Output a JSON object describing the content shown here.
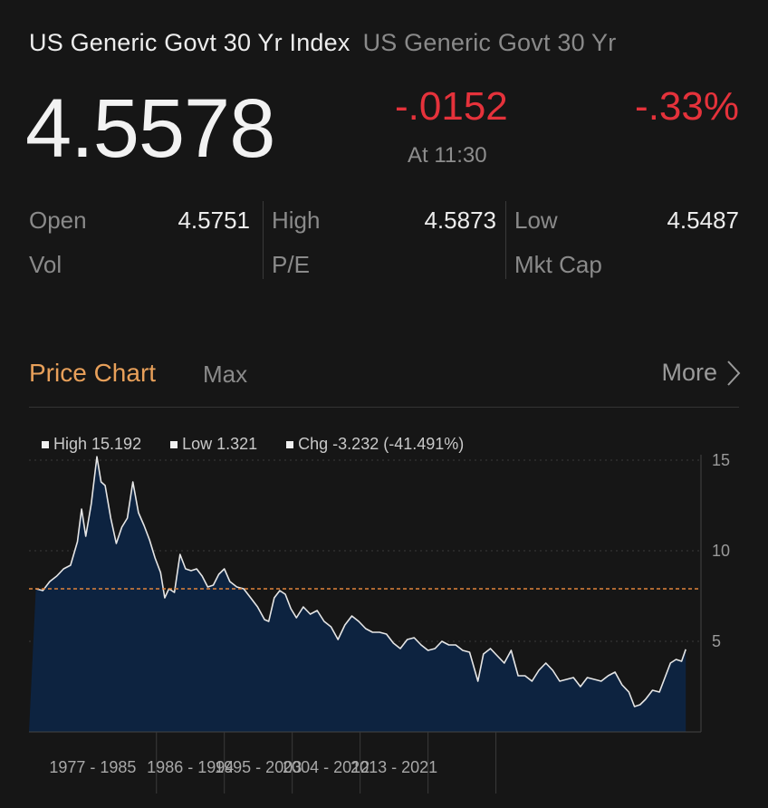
{
  "header": {
    "title": "US Generic Govt 30 Yr Index",
    "subtitle": "US Generic Govt 30 Yr",
    "price": "4.5578",
    "change": "-.0152",
    "change_pct": "-.33%",
    "as_of": "At 11:30"
  },
  "stats": {
    "open_label": "Open",
    "open_value": "4.5751",
    "high_label": "High",
    "high_value": "4.5873",
    "low_label": "Low",
    "low_value": "4.5487",
    "vol_label": "Vol",
    "pe_label": "P/E",
    "mktcap_label": "Mkt Cap"
  },
  "section": {
    "title": "Price Chart",
    "range": "Max",
    "more_label": "More"
  },
  "colors": {
    "accent": "#e8a05a",
    "negative": "#e5323b",
    "area_fill": "#0d2340",
    "line": "#e6e6e6",
    "reference": "#e0833a"
  },
  "chart_data": {
    "type": "area",
    "legend": [
      "High 15.192",
      "Low 1.321",
      "Chg -3.232 (-41.491%)"
    ],
    "x": [
      1977.0,
      1977.5,
      1978.0,
      1978.5,
      1979.0,
      1979.5,
      1980.0,
      1980.3,
      1980.6,
      1981.0,
      1981.4,
      1981.7,
      1982.0,
      1982.4,
      1982.8,
      1983.2,
      1983.6,
      1984.0,
      1984.4,
      1984.8,
      1985.2,
      1985.6,
      1986.0,
      1986.3,
      1986.6,
      1987.0,
      1987.4,
      1987.8,
      1988.2,
      1988.6,
      1989.0,
      1989.4,
      1989.8,
      1990.2,
      1990.6,
      1991.0,
      1991.5,
      1992.0,
      1992.5,
      1993.0,
      1993.5,
      1993.8,
      1994.2,
      1994.6,
      1995.0,
      1995.4,
      1995.8,
      1996.3,
      1996.8,
      1997.3,
      1997.8,
      1998.3,
      1998.8,
      1999.3,
      1999.8,
      2000.3,
      2000.8,
      2001.3,
      2001.8,
      2002.3,
      2002.8,
      2003.3,
      2003.8,
      2004.3,
      2004.8,
      2005.3,
      2005.8,
      2006.3,
      2006.8,
      2007.3,
      2007.8,
      2008.3,
      2008.9,
      2009.3,
      2009.8,
      2010.3,
      2010.8,
      2011.3,
      2011.8,
      2012.3,
      2012.8,
      2013.3,
      2013.8,
      2014.3,
      2014.8,
      2015.3,
      2015.8,
      2016.3,
      2016.8,
      2017.3,
      2017.8,
      2018.3,
      2018.8,
      2019.3,
      2019.8,
      2020.2,
      2020.6,
      2021.0,
      2021.5,
      2022.0,
      2022.4,
      2022.8,
      2023.2,
      2023.6,
      2023.9
    ],
    "values": [
      7.9,
      7.8,
      8.3,
      8.6,
      9.0,
      9.2,
      10.5,
      12.3,
      10.8,
      12.6,
      15.19,
      13.8,
      13.6,
      11.8,
      10.4,
      11.3,
      11.8,
      13.8,
      12.1,
      11.4,
      10.6,
      9.6,
      8.8,
      7.4,
      7.9,
      7.7,
      9.8,
      9.0,
      8.9,
      9.0,
      8.6,
      8.0,
      8.1,
      8.7,
      9.0,
      8.3,
      8.0,
      7.9,
      7.4,
      6.9,
      6.2,
      6.1,
      7.4,
      7.8,
      7.6,
      6.8,
      6.3,
      6.9,
      6.5,
      6.7,
      6.1,
      5.8,
      5.1,
      5.9,
      6.4,
      6.1,
      5.7,
      5.5,
      5.5,
      5.4,
      4.9,
      4.6,
      5.1,
      5.2,
      4.8,
      4.5,
      4.6,
      5.0,
      4.8,
      4.8,
      4.5,
      4.4,
      2.8,
      4.3,
      4.6,
      4.2,
      3.8,
      4.5,
      3.1,
      3.1,
      2.8,
      3.4,
      3.8,
      3.4,
      2.8,
      2.9,
      3.0,
      2.5,
      3.0,
      2.9,
      2.8,
      3.1,
      3.3,
      2.6,
      2.2,
      1.4,
      1.5,
      1.8,
      2.3,
      2.2,
      3.0,
      3.8,
      4.0,
      3.9,
      4.56
    ],
    "xlim": [
      1976.5,
      2025.0
    ],
    "ylim": [
      0,
      15.3
    ],
    "y_ticks": [
      5,
      10,
      15
    ],
    "y_tick_labels": [
      "5",
      "10",
      "15"
    ],
    "reference_line": 7.9,
    "period_labels": [
      "1977 - 1985",
      "1986 - 1994",
      "1995 - 2003",
      "2004 - 2012",
      "2013 - 2021"
    ],
    "period_breaks": [
      1985.7,
      1990.6,
      1995.5,
      2000.4,
      2005.3,
      2010.2
    ],
    "grid": true
  }
}
